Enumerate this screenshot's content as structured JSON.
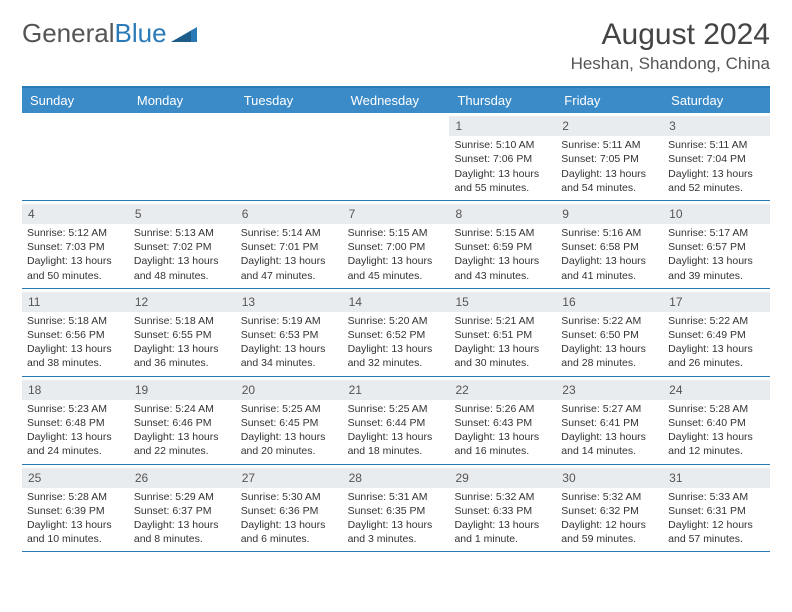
{
  "logo": {
    "text1": "General",
    "text2": "Blue"
  },
  "title": "August 2024",
  "location": "Heshan, Shandong, China",
  "header_color": "#3b8bc9",
  "border_color": "#2a7ab8",
  "daynum_bg": "#e9ecef",
  "dow": [
    "Sunday",
    "Monday",
    "Tuesday",
    "Wednesday",
    "Thursday",
    "Friday",
    "Saturday"
  ],
  "weeks": [
    [
      {
        "n": "",
        "sr": "",
        "ss": "",
        "dl": ""
      },
      {
        "n": "",
        "sr": "",
        "ss": "",
        "dl": ""
      },
      {
        "n": "",
        "sr": "",
        "ss": "",
        "dl": ""
      },
      {
        "n": "",
        "sr": "",
        "ss": "",
        "dl": ""
      },
      {
        "n": "1",
        "sr": "Sunrise: 5:10 AM",
        "ss": "Sunset: 7:06 PM",
        "dl": "Daylight: 13 hours and 55 minutes."
      },
      {
        "n": "2",
        "sr": "Sunrise: 5:11 AM",
        "ss": "Sunset: 7:05 PM",
        "dl": "Daylight: 13 hours and 54 minutes."
      },
      {
        "n": "3",
        "sr": "Sunrise: 5:11 AM",
        "ss": "Sunset: 7:04 PM",
        "dl": "Daylight: 13 hours and 52 minutes."
      }
    ],
    [
      {
        "n": "4",
        "sr": "Sunrise: 5:12 AM",
        "ss": "Sunset: 7:03 PM",
        "dl": "Daylight: 13 hours and 50 minutes."
      },
      {
        "n": "5",
        "sr": "Sunrise: 5:13 AM",
        "ss": "Sunset: 7:02 PM",
        "dl": "Daylight: 13 hours and 48 minutes."
      },
      {
        "n": "6",
        "sr": "Sunrise: 5:14 AM",
        "ss": "Sunset: 7:01 PM",
        "dl": "Daylight: 13 hours and 47 minutes."
      },
      {
        "n": "7",
        "sr": "Sunrise: 5:15 AM",
        "ss": "Sunset: 7:00 PM",
        "dl": "Daylight: 13 hours and 45 minutes."
      },
      {
        "n": "8",
        "sr": "Sunrise: 5:15 AM",
        "ss": "Sunset: 6:59 PM",
        "dl": "Daylight: 13 hours and 43 minutes."
      },
      {
        "n": "9",
        "sr": "Sunrise: 5:16 AM",
        "ss": "Sunset: 6:58 PM",
        "dl": "Daylight: 13 hours and 41 minutes."
      },
      {
        "n": "10",
        "sr": "Sunrise: 5:17 AM",
        "ss": "Sunset: 6:57 PM",
        "dl": "Daylight: 13 hours and 39 minutes."
      }
    ],
    [
      {
        "n": "11",
        "sr": "Sunrise: 5:18 AM",
        "ss": "Sunset: 6:56 PM",
        "dl": "Daylight: 13 hours and 38 minutes."
      },
      {
        "n": "12",
        "sr": "Sunrise: 5:18 AM",
        "ss": "Sunset: 6:55 PM",
        "dl": "Daylight: 13 hours and 36 minutes."
      },
      {
        "n": "13",
        "sr": "Sunrise: 5:19 AM",
        "ss": "Sunset: 6:53 PM",
        "dl": "Daylight: 13 hours and 34 minutes."
      },
      {
        "n": "14",
        "sr": "Sunrise: 5:20 AM",
        "ss": "Sunset: 6:52 PM",
        "dl": "Daylight: 13 hours and 32 minutes."
      },
      {
        "n": "15",
        "sr": "Sunrise: 5:21 AM",
        "ss": "Sunset: 6:51 PM",
        "dl": "Daylight: 13 hours and 30 minutes."
      },
      {
        "n": "16",
        "sr": "Sunrise: 5:22 AM",
        "ss": "Sunset: 6:50 PM",
        "dl": "Daylight: 13 hours and 28 minutes."
      },
      {
        "n": "17",
        "sr": "Sunrise: 5:22 AM",
        "ss": "Sunset: 6:49 PM",
        "dl": "Daylight: 13 hours and 26 minutes."
      }
    ],
    [
      {
        "n": "18",
        "sr": "Sunrise: 5:23 AM",
        "ss": "Sunset: 6:48 PM",
        "dl": "Daylight: 13 hours and 24 minutes."
      },
      {
        "n": "19",
        "sr": "Sunrise: 5:24 AM",
        "ss": "Sunset: 6:46 PM",
        "dl": "Daylight: 13 hours and 22 minutes."
      },
      {
        "n": "20",
        "sr": "Sunrise: 5:25 AM",
        "ss": "Sunset: 6:45 PM",
        "dl": "Daylight: 13 hours and 20 minutes."
      },
      {
        "n": "21",
        "sr": "Sunrise: 5:25 AM",
        "ss": "Sunset: 6:44 PM",
        "dl": "Daylight: 13 hours and 18 minutes."
      },
      {
        "n": "22",
        "sr": "Sunrise: 5:26 AM",
        "ss": "Sunset: 6:43 PM",
        "dl": "Daylight: 13 hours and 16 minutes."
      },
      {
        "n": "23",
        "sr": "Sunrise: 5:27 AM",
        "ss": "Sunset: 6:41 PM",
        "dl": "Daylight: 13 hours and 14 minutes."
      },
      {
        "n": "24",
        "sr": "Sunrise: 5:28 AM",
        "ss": "Sunset: 6:40 PM",
        "dl": "Daylight: 13 hours and 12 minutes."
      }
    ],
    [
      {
        "n": "25",
        "sr": "Sunrise: 5:28 AM",
        "ss": "Sunset: 6:39 PM",
        "dl": "Daylight: 13 hours and 10 minutes."
      },
      {
        "n": "26",
        "sr": "Sunrise: 5:29 AM",
        "ss": "Sunset: 6:37 PM",
        "dl": "Daylight: 13 hours and 8 minutes."
      },
      {
        "n": "27",
        "sr": "Sunrise: 5:30 AM",
        "ss": "Sunset: 6:36 PM",
        "dl": "Daylight: 13 hours and 6 minutes."
      },
      {
        "n": "28",
        "sr": "Sunrise: 5:31 AM",
        "ss": "Sunset: 6:35 PM",
        "dl": "Daylight: 13 hours and 3 minutes."
      },
      {
        "n": "29",
        "sr": "Sunrise: 5:32 AM",
        "ss": "Sunset: 6:33 PM",
        "dl": "Daylight: 13 hours and 1 minute."
      },
      {
        "n": "30",
        "sr": "Sunrise: 5:32 AM",
        "ss": "Sunset: 6:32 PM",
        "dl": "Daylight: 12 hours and 59 minutes."
      },
      {
        "n": "31",
        "sr": "Sunrise: 5:33 AM",
        "ss": "Sunset: 6:31 PM",
        "dl": "Daylight: 12 hours and 57 minutes."
      }
    ]
  ]
}
